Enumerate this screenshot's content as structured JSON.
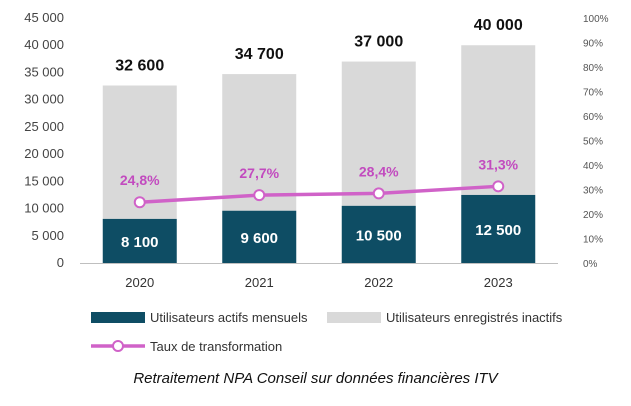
{
  "chart_data": {
    "type": "bar",
    "stacked": true,
    "categories": [
      "2020",
      "2021",
      "2022",
      "2023"
    ],
    "series": [
      {
        "name": "Utilisateurs actifs mensuels",
        "values": [
          8100,
          9600,
          10500,
          12500
        ],
        "labels": [
          "8 100",
          "9 600",
          "10 500",
          "12 500"
        ],
        "color": "#0e4d64"
      },
      {
        "name": "Utilisateurs enregistrés inactifs",
        "values": [
          24500,
          25100,
          26500,
          27500
        ],
        "color": "#d9d9d9"
      }
    ],
    "totals": {
      "values": [
        32600,
        34700,
        37000,
        40000
      ],
      "labels": [
        "32 600",
        "34 700",
        "37 000",
        "40 000"
      ]
    },
    "line": {
      "name": "Taux de transformation",
      "axis": "right",
      "values": [
        24.8,
        27.7,
        28.4,
        31.3
      ],
      "labels": [
        "24,8%",
        "27,7%",
        "28,4%",
        "31,3%"
      ],
      "color": "#d062c8"
    },
    "ylim": [
      0,
      45000
    ],
    "yticks": [
      "0",
      "5 000",
      "10 000",
      "15 000",
      "20 000",
      "25 000",
      "30 000",
      "35 000",
      "40 000",
      "45 000"
    ],
    "y2lim": [
      0,
      100
    ],
    "y2ticks": [
      "0%",
      "10%",
      "20%",
      "30%",
      "40%",
      "50%",
      "60%",
      "70%",
      "80%",
      "90%",
      "100%"
    ],
    "grid": false,
    "legend_position": "bottom",
    "caption": "Retraitement NPA Conseil sur données financières ITV"
  }
}
